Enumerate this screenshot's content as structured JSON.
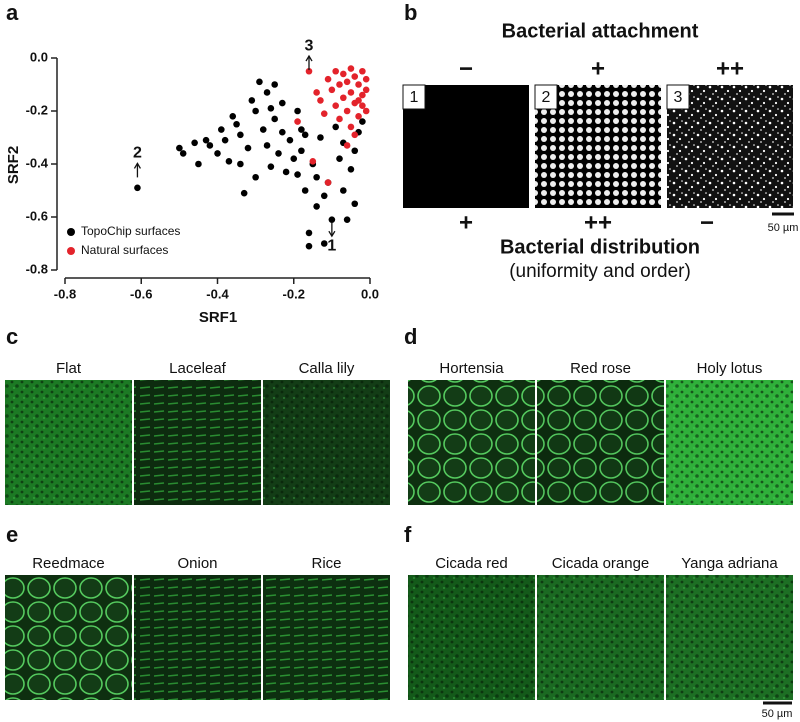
{
  "chart_data": {
    "type": "scatter",
    "xlabel": "SRF1",
    "ylabel": "SRF2",
    "xlim": [
      -0.8,
      0
    ],
    "ylim": [
      -0.8,
      0
    ],
    "xticks": [
      -0.8,
      -0.6,
      -0.4,
      -0.2,
      {
        "value": 0,
        "label": "0.0"
      }
    ],
    "yticks": [
      -0.8,
      -0.6,
      -0.4,
      -0.2,
      {
        "value": 0,
        "label": "0.0"
      }
    ],
    "legend": "lower left",
    "series": [
      {
        "name": "TopoChip surfaces",
        "color": "#000000",
        "x": [
          -0.61,
          -0.5,
          -0.49,
          -0.46,
          -0.45,
          -0.43,
          -0.42,
          -0.4,
          -0.39,
          -0.38,
          -0.37,
          -0.36,
          -0.35,
          -0.34,
          -0.34,
          -0.33,
          -0.32,
          -0.31,
          -0.3,
          -0.3,
          -0.29,
          -0.28,
          -0.27,
          -0.27,
          -0.26,
          -0.26,
          -0.25,
          -0.25,
          -0.24,
          -0.23,
          -0.23,
          -0.22,
          -0.21,
          -0.2,
          -0.19,
          -0.19,
          -0.18,
          -0.17,
          -0.17,
          -0.16,
          -0.16,
          -0.15,
          -0.14,
          -0.14,
          -0.13,
          -0.12,
          -0.11,
          -0.1,
          -0.09,
          -0.08,
          -0.07,
          -0.07,
          -0.06,
          -0.05,
          -0.04,
          -0.04,
          -0.03,
          -0.02,
          -0.12,
          -0.18
        ],
        "values": [
          -0.49,
          -0.34,
          -0.36,
          -0.32,
          -0.4,
          -0.31,
          -0.33,
          -0.36,
          -0.27,
          -0.31,
          -0.39,
          -0.22,
          -0.25,
          -0.29,
          -0.4,
          -0.51,
          -0.34,
          -0.16,
          -0.2,
          -0.45,
          -0.09,
          -0.27,
          -0.13,
          -0.33,
          -0.19,
          -0.41,
          -0.1,
          -0.23,
          -0.36,
          -0.17,
          -0.28,
          -0.43,
          -0.31,
          -0.38,
          -0.2,
          -0.44,
          -0.35,
          -0.29,
          -0.5,
          -0.66,
          -0.71,
          -0.4,
          -0.56,
          -0.45,
          -0.3,
          -0.7,
          -0.47,
          -0.61,
          -0.26,
          -0.38,
          -0.32,
          -0.5,
          -0.61,
          -0.42,
          -0.35,
          -0.55,
          -0.28,
          -0.24,
          -0.52,
          -0.27
        ]
      },
      {
        "name": "Natural surfaces",
        "color": "#e3232b",
        "x": [
          -0.16,
          -0.19,
          -0.15,
          -0.11,
          -0.14,
          -0.12,
          -0.11,
          -0.1,
          -0.09,
          -0.09,
          -0.08,
          -0.08,
          -0.07,
          -0.07,
          -0.06,
          -0.06,
          -0.05,
          -0.05,
          -0.05,
          -0.04,
          -0.04,
          -0.03,
          -0.03,
          -0.02,
          -0.02,
          -0.02,
          -0.01,
          -0.01,
          -0.01,
          -0.06,
          -0.04,
          -0.13,
          -0.03
        ],
        "values": [
          -0.05,
          -0.24,
          -0.39,
          -0.47,
          -0.13,
          -0.21,
          -0.08,
          -0.12,
          -0.05,
          -0.18,
          -0.1,
          -0.23,
          -0.06,
          -0.15,
          -0.09,
          -0.2,
          -0.04,
          -0.13,
          -0.26,
          -0.07,
          -0.17,
          -0.1,
          -0.22,
          -0.05,
          -0.14,
          -0.18,
          -0.08,
          -0.12,
          -0.2,
          -0.33,
          -0.29,
          -0.16,
          -0.16
        ]
      }
    ],
    "annotations": [
      {
        "text": "1",
        "x": -0.1,
        "y": -0.71
      },
      {
        "text": "2",
        "x": -0.61,
        "y": -0.36
      },
      {
        "text": "3",
        "x": -0.16,
        "y": 0.045
      }
    ]
  },
  "panel_labels": [
    "a",
    "b",
    "c",
    "d",
    "e",
    "f"
  ],
  "panel_b": {
    "title": "Bacterial attachment",
    "images": [
      {
        "number": "1",
        "attachment": "−",
        "distribution": "+"
      },
      {
        "number": "2",
        "attachment": "+",
        "distribution": "++"
      },
      {
        "number": "3",
        "attachment": "++",
        "distribution": "−"
      }
    ],
    "scale_bar": "50 µm",
    "subtitle": "Bacterial distribution",
    "subtitle_note": "(uniformity and order)"
  },
  "image_panels": [
    [
      "Flat",
      "Laceleaf",
      "Calla lily"
    ],
    [
      "Hortensia",
      "Red rose",
      "Holy lotus"
    ],
    [
      "Reedmace",
      "Onion",
      "Rice"
    ],
    [
      "Cicada red",
      "Cicada orange",
      "Yanga adriana"
    ]
  ],
  "scale_bar": "50 µm"
}
